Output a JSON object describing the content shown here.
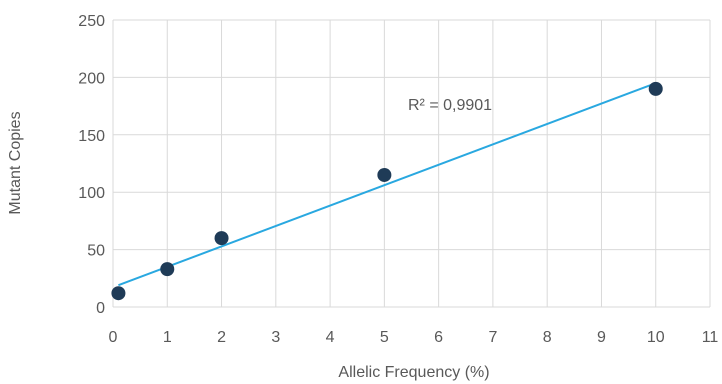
{
  "chart_data": {
    "type": "scatter",
    "title": "",
    "xlabel": "Allelic Frequency (%)",
    "ylabel": "Mutant Copies",
    "xlim": [
      0,
      11
    ],
    "ylim": [
      0,
      250
    ],
    "xticks": [
      0,
      1,
      2,
      3,
      4,
      5,
      6,
      7,
      8,
      9,
      10,
      11
    ],
    "yticks": [
      0,
      50,
      100,
      150,
      200,
      250
    ],
    "grid": true,
    "legend": "none",
    "series": [
      {
        "points": [
          {
            "x": 0.1,
            "y": 12
          },
          {
            "x": 1,
            "y": 33
          },
          {
            "x": 2,
            "y": 60
          },
          {
            "x": 5,
            "y": 115
          },
          {
            "x": 10,
            "y": 190
          }
        ],
        "color": "#1f3b57"
      }
    ],
    "trendline": {
      "type": "linear",
      "x_range": [
        0.1,
        10
      ],
      "y_range": [
        19,
        195
      ],
      "color": "#29a8e0",
      "label": "R² = 0,9901"
    }
  }
}
